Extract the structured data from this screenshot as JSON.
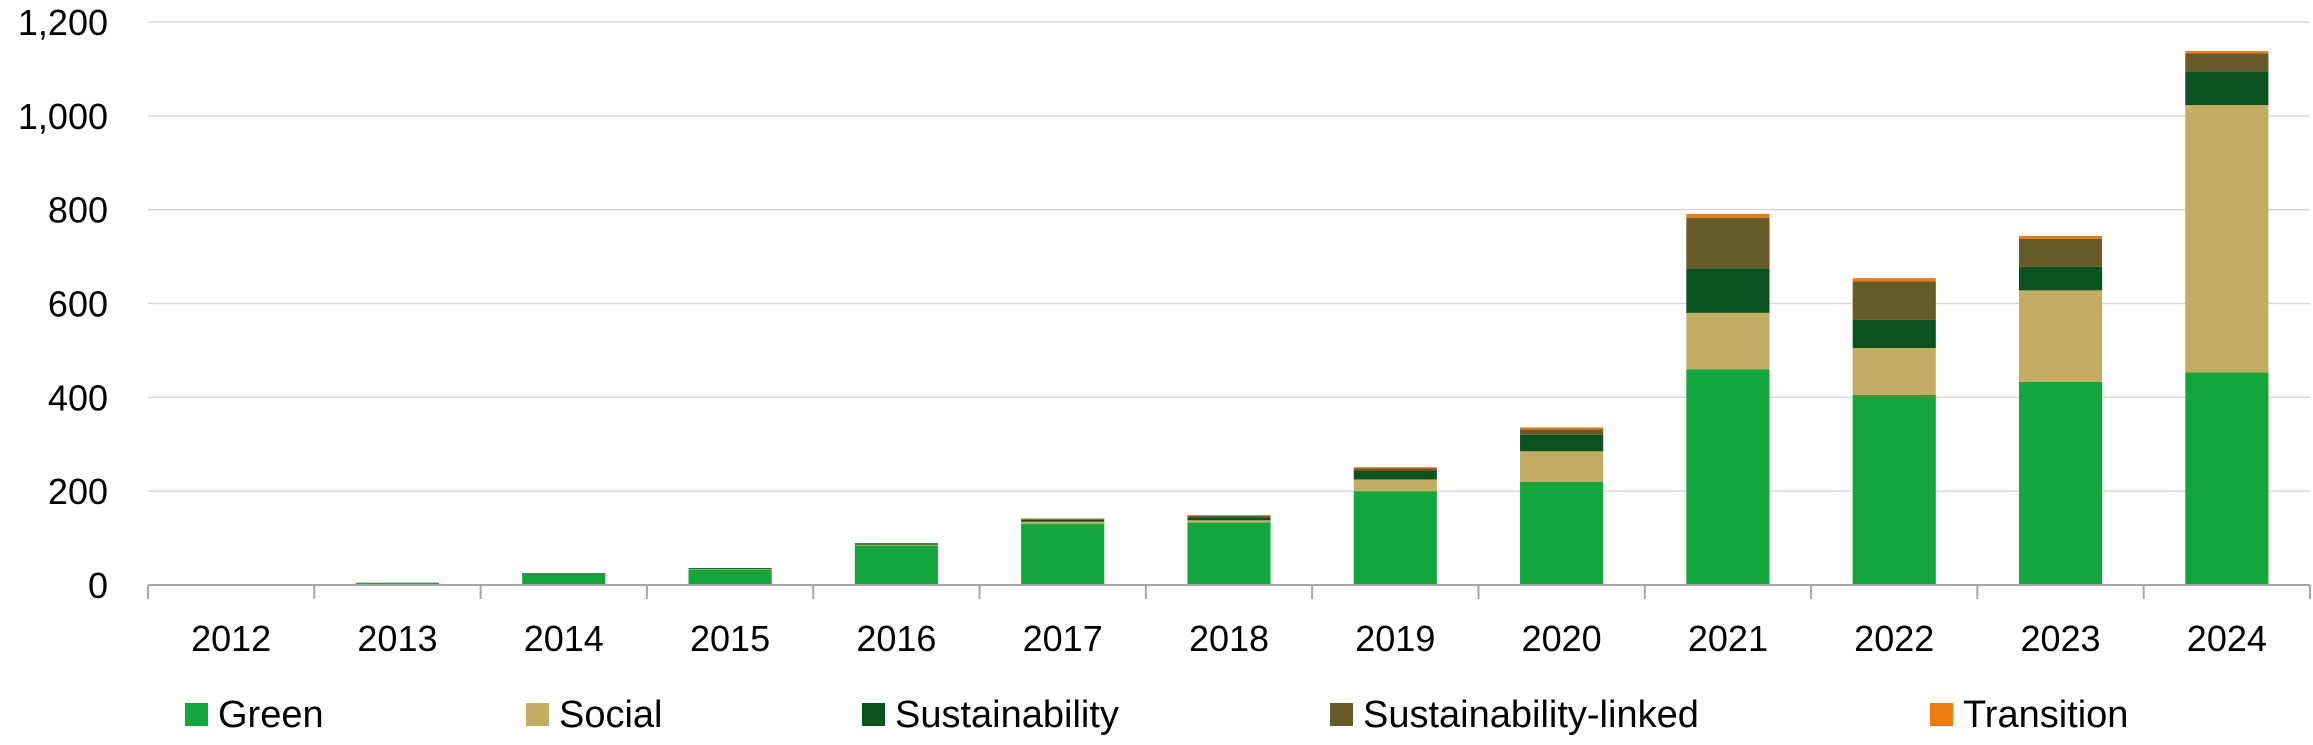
{
  "chart_data": {
    "type": "bar",
    "stacked": true,
    "title": "",
    "xlabel": "",
    "ylabel": "",
    "ylim": [
      0,
      1200
    ],
    "yticks": [
      0,
      200,
      400,
      600,
      800,
      1000,
      1200
    ],
    "ytick_labels": [
      "0",
      "200",
      "400",
      "600",
      "800",
      "1,000",
      "1,200"
    ],
    "grid": "horizontal",
    "legend_position": "bottom",
    "categories": [
      "2012",
      "2013",
      "2014",
      "2015",
      "2016",
      "2017",
      "2018",
      "2019",
      "2020",
      "2021",
      "2022",
      "2023",
      "2024"
    ],
    "series": [
      {
        "name": "Green",
        "color": "#12a63c",
        "values": [
          1,
          5,
          24,
          33,
          84,
          130,
          133,
          200,
          220,
          460,
          405,
          433,
          453
        ]
      },
      {
        "name": "Social",
        "color": "#c2ad62",
        "values": [
          0,
          0,
          0,
          1,
          2,
          5,
          5,
          25,
          65,
          120,
          100,
          195,
          570
        ]
      },
      {
        "name": "Sustainability",
        "color": "#0a5220",
        "values": [
          0,
          0,
          1,
          2,
          3,
          4,
          6,
          18,
          35,
          95,
          60,
          50,
          72
        ]
      },
      {
        "name": "Sustainability-linked",
        "color": "#665a28",
        "values": [
          0,
          0,
          0,
          0,
          0,
          2,
          4,
          6,
          12,
          108,
          82,
          60,
          38
        ]
      },
      {
        "name": "Transition",
        "color": "#ec7a12",
        "values": [
          0,
          0,
          0,
          0,
          0,
          1,
          1,
          2,
          4,
          8,
          7,
          6,
          5
        ]
      }
    ]
  }
}
